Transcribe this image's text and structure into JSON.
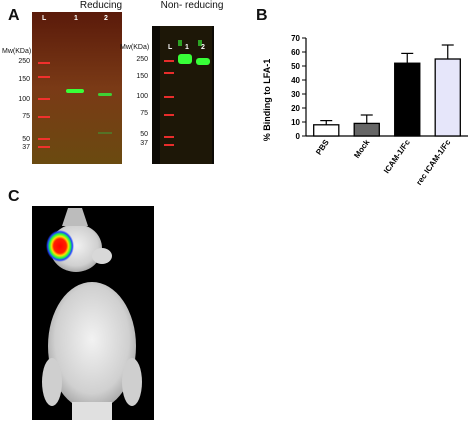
{
  "panels": {
    "a": {
      "letter": "A"
    },
    "b": {
      "letter": "B"
    },
    "c": {
      "letter": "C"
    }
  },
  "gel_reducing": {
    "title": "Reducing",
    "mw_header": "Mw(KDa)",
    "mw_markers": [
      "250",
      "150",
      "100",
      "75",
      "50",
      "37"
    ],
    "lanes": [
      "L",
      "1",
      "2"
    ]
  },
  "gel_nonreducing": {
    "title": "Non- reducing",
    "mw_header": "Mw(KDa)",
    "mw_markers": [
      "250",
      "150",
      "100",
      "75",
      "50",
      "37"
    ],
    "lanes": [
      "L",
      "1",
      "2"
    ]
  },
  "chart_data": {
    "type": "bar",
    "categories": [
      "PBS",
      "Mock",
      "ICAM-1/Fc",
      "rec ICAM-1/Fc"
    ],
    "values": [
      8,
      9,
      52,
      55
    ],
    "errors": [
      3,
      6,
      7,
      10
    ],
    "bar_colors": [
      "#ffffff",
      "#666666",
      "#000000",
      "#e6e6fa"
    ],
    "ylabel": "% Binding to LFA-1",
    "xlabel": "",
    "ylim": [
      0,
      70
    ],
    "yticks": [
      0,
      10,
      20,
      30,
      40,
      50,
      60,
      70
    ]
  },
  "colors": {
    "gel_background": "#7a3a16",
    "ladder_band": "#ff3030",
    "green_band": "#38ff38",
    "mouse_background": "#000000"
  }
}
